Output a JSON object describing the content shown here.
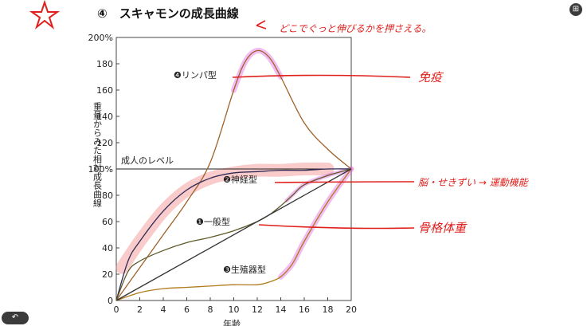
{
  "title": "④　スキャモンの成長曲線",
  "chart_data": {
    "type": "line",
    "title": "④　スキャモンの成長曲線",
    "xlabel": "年齢",
    "ylabel": "重量からみた相対成長曲線",
    "xlim": [
      0,
      20
    ],
    "ylim": [
      0,
      200
    ],
    "x_ticks": [
      "0",
      "2",
      "4",
      "6",
      "8",
      "10",
      "12",
      "14",
      "16",
      "18",
      "20"
    ],
    "y_ticks": [
      "0",
      "20",
      "40",
      "60",
      "80",
      "100%",
      "120",
      "140",
      "160",
      "180",
      "200%"
    ],
    "reference_line": {
      "label": "成人のレベル",
      "value": 100
    },
    "series": [
      {
        "name": "❹リンパ型",
        "color": "#a0622a",
        "x": [
          0,
          2,
          4,
          6,
          8,
          10,
          11,
          12,
          13,
          14,
          16,
          18,
          20
        ],
        "y": [
          0,
          25,
          50,
          75,
          105,
          160,
          182,
          190,
          185,
          170,
          135,
          115,
          100
        ]
      },
      {
        "name": "❷神経型",
        "color": "#2f2a55",
        "x": [
          0,
          1,
          2,
          4,
          6,
          8,
          10,
          12,
          14,
          16,
          18,
          20
        ],
        "y": [
          0,
          30,
          45,
          68,
          84,
          93,
          97,
          98,
          99,
          99,
          100,
          100
        ]
      },
      {
        "name": "❶一般型",
        "color": "#5e5a2a",
        "x": [
          0,
          1,
          2,
          4,
          6,
          8,
          10,
          12,
          13,
          14,
          15,
          16,
          18,
          20
        ],
        "y": [
          0,
          22,
          30,
          38,
          44,
          48,
          53,
          60,
          65,
          72,
          80,
          88,
          95,
          100
        ]
      },
      {
        "name": "❸生殖器型",
        "color": "#b07a1a",
        "x": [
          0,
          2,
          4,
          6,
          8,
          10,
          12,
          13,
          14,
          15,
          16,
          18,
          20
        ],
        "y": [
          0,
          6,
          9,
          10,
          11,
          12,
          12,
          14,
          18,
          28,
          45,
          75,
          100
        ]
      },
      {
        "name": "",
        "color": "#333333",
        "x": [
          0,
          20
        ],
        "y": [
          0,
          100
        ]
      }
    ]
  },
  "annotations": {
    "top_note": "どこでぐっと伸びるかを押さえる。",
    "lymph_note": "免疫",
    "nerve_note": "脳・せきずい → 運動機能",
    "general_note": "骨格体重"
  },
  "ui": {
    "undo_icon": "↶",
    "toolbar_icon": "⊞"
  }
}
